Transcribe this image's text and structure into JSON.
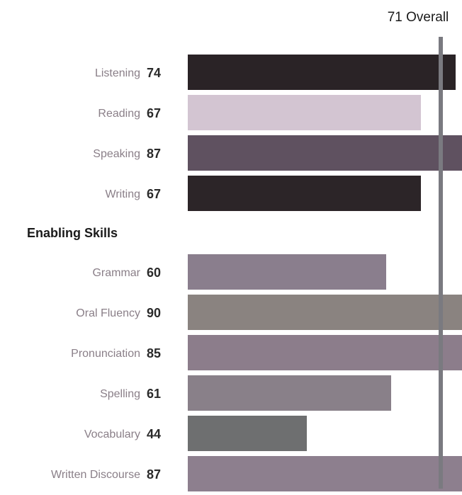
{
  "chart_data": {
    "type": "bar",
    "orientation": "horizontal",
    "overall": {
      "value": 71,
      "label": "71 Overall"
    },
    "xlim": [
      20,
      95
    ],
    "groups": [
      {
        "heading": "",
        "categories": [
          "Listening",
          "Reading",
          "Speaking",
          "Writing"
        ],
        "values": [
          74,
          67,
          87,
          67
        ],
        "colors": [
          "#2a2326",
          "#d3c5d2",
          "#5f5160",
          "#2c2528"
        ]
      },
      {
        "heading": "Enabling Skills",
        "categories": [
          "Grammar",
          "Oral Fluency",
          "Pronunciation",
          "Spelling",
          "Vocabulary",
          "Written Discourse"
        ],
        "values": [
          60,
          90,
          85,
          61,
          44,
          87
        ],
        "colors": [
          "#8a7e8d",
          "#8a8380",
          "#8c7d8b",
          "#898089",
          "#6e6f70",
          "#8d7f8e"
        ]
      }
    ],
    "grid": false,
    "legend": "none"
  }
}
